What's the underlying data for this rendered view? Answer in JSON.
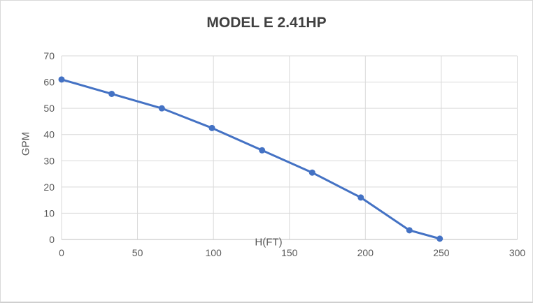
{
  "chart_data": {
    "type": "line",
    "title": "MODEL E 2.41HP",
    "xlabel": "H(FT)",
    "ylabel": "GPM",
    "series": [
      {
        "name": "GPM",
        "x": [
          0,
          33,
          66,
          99,
          132,
          165,
          197,
          229,
          249
        ],
        "y": [
          61,
          55.5,
          50,
          42.5,
          34,
          25.5,
          16,
          3.5,
          0.3
        ]
      }
    ],
    "xlim": [
      0,
      300
    ],
    "ylim": [
      0,
      70
    ],
    "x_ticks": [
      0,
      50,
      100,
      150,
      200,
      250,
      300
    ],
    "y_ticks": [
      0,
      10,
      20,
      30,
      40,
      50,
      60,
      70
    ],
    "grid": true,
    "legend": "none",
    "colors": {
      "line": "#4472C4",
      "marker": "#4472C4",
      "gridline": "#d9d9d9",
      "axis_line": "#bfbfbf",
      "tick_label": "#595959",
      "title": "#404040"
    }
  }
}
